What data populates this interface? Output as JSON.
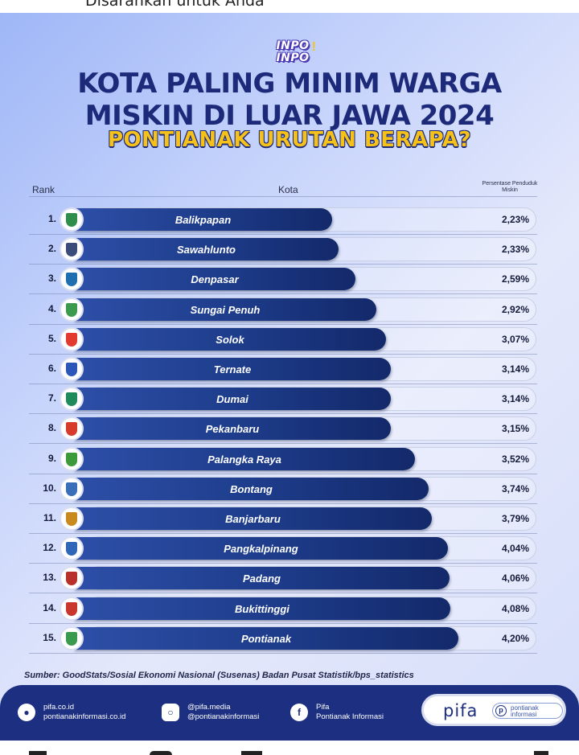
{
  "top_strip_text": "Disarankan untuk Anda",
  "logo": {
    "line1": "INPO",
    "line2": "INPO",
    "mark": "!"
  },
  "title_line1": "KOTA PALING MINIM WARGA",
  "title_line2": "MISKIN DI LUAR JAWA 2024",
  "subtitle": "PONTIANAK URUTAN BERAPA?",
  "colors": {
    "title": "#1d2a7a",
    "accent": "#f6c21a",
    "bar": "#1e3d8c",
    "footer": "#1c2f80"
  },
  "chart_data": {
    "type": "bar",
    "orientation": "horizontal",
    "column_headers": {
      "rank": "Rank",
      "city": "Kota",
      "value": "Persentase Penduduk Miskin"
    },
    "ranks": [
      "1.",
      "2.",
      "3.",
      "4.",
      "5.",
      "6.",
      "7.",
      "8.",
      "9.",
      "10.",
      "11.",
      "12.",
      "13.",
      "14.",
      "15."
    ],
    "categories": [
      "Balikpapan",
      "Sawahlunto",
      "Denpasar",
      "Sungai Penuh",
      "Solok",
      "Ternate",
      "Dumai",
      "Pekanbaru",
      "Palangka Raya",
      "Bontang",
      "Banjarbaru",
      "Pangkalpinang",
      "Padang",
      "Bukittinggi",
      "Pontianak"
    ],
    "values": [
      2.23,
      2.33,
      2.59,
      2.92,
      3.07,
      3.14,
      3.14,
      3.15,
      3.52,
      3.74,
      3.79,
      4.04,
      4.06,
      4.08,
      4.2
    ],
    "value_labels": [
      "2,23%",
      "2,33%",
      "2,59%",
      "2,92%",
      "3,07%",
      "3,14%",
      "3,14%",
      "3,15%",
      "3,52%",
      "3,74%",
      "3,79%",
      "4,04%",
      "4,06%",
      "4,08%",
      "4,20%"
    ],
    "emblem_colors": [
      "#2f8f4a",
      "#3a4c7a",
      "#1f6fb0",
      "#3b9a4d",
      "#e23a2e",
      "#2c56b8",
      "#1f8a5a",
      "#d63b2b",
      "#3d9a3a",
      "#3a6eb8",
      "#c88a1f",
      "#2f66b8",
      "#b8302a",
      "#c9372c",
      "#3a9a50"
    ]
  },
  "source": "Sumber: GoodStats/Sosial Ekonomi Nasional (Susenas) Badan Pusat Statistik/bps_statistics",
  "footer": {
    "web": {
      "icon": "globe-icon",
      "line1": "pifa.co.id",
      "line2": "pontianakinformasi.co.id"
    },
    "instagram": {
      "icon": "instagram-icon",
      "line1": "@pifa.media",
      "line2": "@pontianakinformasi"
    },
    "facebook": {
      "icon": "facebook-icon",
      "line1": "Pifa",
      "line2": "Pontianak Informasi"
    },
    "brand": {
      "word": "pifa",
      "badge_letter": "p",
      "badge_line1": "pontianak",
      "badge_line2": "informasi"
    }
  }
}
